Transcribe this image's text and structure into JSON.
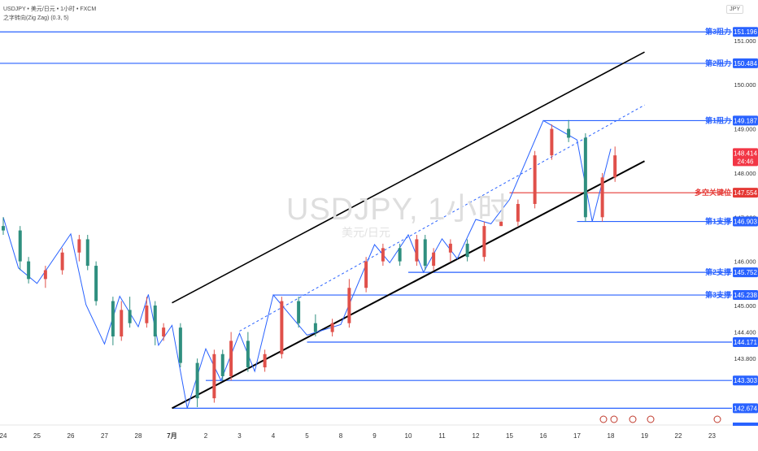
{
  "header": {
    "symbol_line": "USDJPY • 美元/日元 • 1小时 • FXCM",
    "indicator_line": "之字转向(Zig Zag) (0.3, 5)",
    "currency": "JPY"
  },
  "watermark": {
    "symbol": "USDJPY, 1小时",
    "subtitle": "美元/日元"
  },
  "colors": {
    "up": "#e0504a",
    "down": "#2f8f7f",
    "level": "#2962ff",
    "key_level": "#e53935",
    "channel": "#000000",
    "zigzag": "#2962ff",
    "price_badge": "#f23645"
  },
  "chart_data": {
    "type": "candlestick",
    "title": "",
    "xlabel": "",
    "ylabel": "",
    "x_ticks": [
      "24",
      "25",
      "26",
      "27",
      "28",
      "7月",
      "2",
      "3",
      "4",
      "5",
      "8",
      "9",
      "10",
      "11",
      "12",
      "15",
      "16",
      "17",
      "18",
      "19",
      "22",
      "23"
    ],
    "y_ticks": [
      "151.000",
      "150.000",
      "149.000",
      "148.000",
      "147.000",
      "146.000",
      "145.000",
      "144.400",
      "143.800"
    ],
    "ylim": [
      142.35,
      151.55
    ],
    "grid": false,
    "levels": [
      {
        "label": "第3阻力",
        "value": "151.196",
        "price": 151.196,
        "kind": "resistance",
        "from": "2024-06-24"
      },
      {
        "label": "第2阻力",
        "value": "150.484",
        "price": 150.484,
        "kind": "resistance",
        "from": "2024-06-24"
      },
      {
        "label": "第1阻力",
        "value": "149.187",
        "price": 149.187,
        "kind": "resistance",
        "from": "2024-07-16"
      },
      {
        "label": "多空关键位",
        "value": "147.554",
        "price": 147.554,
        "kind": "pivot",
        "from": "2024-07-15"
      },
      {
        "label": "第1支撑",
        "value": "146.903",
        "price": 146.903,
        "kind": "support",
        "from": "2024-07-17"
      },
      {
        "label": "第2支撑",
        "value": "145.752",
        "price": 145.752,
        "kind": "support",
        "from": "2024-07-10"
      },
      {
        "label": "第3支撑",
        "value": "145.238",
        "price": 145.238,
        "kind": "support",
        "from": "2024-07-04"
      },
      {
        "label": "",
        "value": "144.171",
        "price": 144.171,
        "kind": "support",
        "from": "2024-07-05"
      },
      {
        "label": "",
        "value": "143.303",
        "price": 143.303,
        "kind": "support",
        "from": "2024-07-02"
      },
      {
        "label": "",
        "value": "142.674",
        "price": 142.674,
        "kind": "support",
        "from": "2024-07-01"
      }
    ],
    "last_price": {
      "value": "148.414",
      "price": 148.414,
      "countdown": "24:46"
    },
    "channel": {
      "upper": [
        [
          "2024-07-01",
          145.06
        ],
        [
          "2024-07-19",
          150.74
        ]
      ],
      "lower": [
        [
          "2024-07-01",
          142.674
        ],
        [
          "2024-07-19",
          148.27
        ]
      ],
      "mid": [
        [
          "2024-07-03",
          144.42
        ],
        [
          "2024-07-19",
          149.54
        ]
      ]
    },
    "zigzag": [
      [
        "2024-06-24",
        147.0
      ],
      [
        "2024-06-24",
        145.85
      ],
      [
        "2024-06-25",
        145.5
      ],
      [
        "2024-06-26",
        146.62
      ],
      [
        "2024-06-26",
        145.02
      ],
      [
        "2024-06-27",
        144.13
      ],
      [
        "2024-06-27",
        145.21
      ],
      [
        "2024-06-28",
        144.52
      ],
      [
        "2024-06-28",
        145.25
      ],
      [
        "2024-06-28",
        144.1
      ],
      [
        "2024-07-01",
        144.55
      ],
      [
        "2024-07-01",
        142.674
      ],
      [
        "2024-07-02",
        144.02
      ],
      [
        "2024-07-02",
        143.303
      ],
      [
        "2024-07-03",
        144.37
      ],
      [
        "2024-07-03",
        143.51
      ],
      [
        "2024-07-04",
        145.238
      ],
      [
        "2024-07-05",
        144.33
      ],
      [
        "2024-07-08",
        144.57
      ],
      [
        "2024-07-09",
        146.38
      ],
      [
        "2024-07-09",
        145.97
      ],
      [
        "2024-07-10",
        146.6
      ],
      [
        "2024-07-10",
        145.752
      ],
      [
        "2024-07-11",
        146.51
      ],
      [
        "2024-07-11",
        146.06
      ],
      [
        "2024-07-12",
        146.95
      ],
      [
        "2024-07-12",
        146.85
      ],
      [
        "2024-07-15",
        147.4
      ],
      [
        "2024-07-16",
        149.187
      ],
      [
        "2024-07-17",
        148.75
      ],
      [
        "2024-07-17",
        146.903
      ],
      [
        "2024-07-18",
        148.55
      ]
    ],
    "candles": [
      {
        "t": "2024-06-24T00:00",
        "o": 146.8,
        "h": 147.0,
        "l": 146.6,
        "c": 146.7
      },
      {
        "t": "2024-06-24T12:00",
        "o": 146.7,
        "h": 146.8,
        "l": 145.8,
        "c": 146.0
      },
      {
        "t": "2024-06-24T18:00",
        "o": 146.0,
        "h": 146.1,
        "l": 145.5,
        "c": 145.6
      },
      {
        "t": "2024-06-25T06:00",
        "o": 145.6,
        "h": 145.9,
        "l": 145.4,
        "c": 145.8
      },
      {
        "t": "2024-06-25T18:00",
        "o": 145.8,
        "h": 146.3,
        "l": 145.7,
        "c": 146.2
      },
      {
        "t": "2024-06-26T06:00",
        "o": 146.2,
        "h": 146.6,
        "l": 146.0,
        "c": 146.5
      },
      {
        "t": "2024-06-26T12:00",
        "o": 146.5,
        "h": 146.6,
        "l": 145.8,
        "c": 145.9
      },
      {
        "t": "2024-06-26T18:00",
        "o": 145.9,
        "h": 146.0,
        "l": 145.0,
        "c": 145.1
      },
      {
        "t": "2024-06-27T06:00",
        "o": 145.1,
        "h": 145.2,
        "l": 144.1,
        "c": 144.3
      },
      {
        "t": "2024-06-27T12:00",
        "o": 144.3,
        "h": 145.1,
        "l": 144.2,
        "c": 144.9
      },
      {
        "t": "2024-06-27T18:00",
        "o": 144.9,
        "h": 145.2,
        "l": 144.5,
        "c": 144.6
      },
      {
        "t": "2024-06-28T06:00",
        "o": 144.6,
        "h": 145.2,
        "l": 144.5,
        "c": 145.0
      },
      {
        "t": "2024-06-28T12:00",
        "o": 145.0,
        "h": 145.1,
        "l": 144.1,
        "c": 144.3
      },
      {
        "t": "2024-06-28T18:00",
        "o": 144.3,
        "h": 144.6,
        "l": 144.2,
        "c": 144.5
      },
      {
        "t": "2024-07-01T06:00",
        "o": 144.5,
        "h": 144.6,
        "l": 143.6,
        "c": 143.7
      },
      {
        "t": "2024-07-01T18:00",
        "o": 143.7,
        "h": 143.8,
        "l": 142.7,
        "c": 142.9
      },
      {
        "t": "2024-07-02T06:00",
        "o": 142.9,
        "h": 144.0,
        "l": 142.8,
        "c": 143.9
      },
      {
        "t": "2024-07-02T12:00",
        "o": 143.9,
        "h": 144.0,
        "l": 143.3,
        "c": 143.4
      },
      {
        "t": "2024-07-02T18:00",
        "o": 143.4,
        "h": 144.4,
        "l": 143.3,
        "c": 144.2
      },
      {
        "t": "2024-07-03T06:00",
        "o": 144.2,
        "h": 144.4,
        "l": 143.5,
        "c": 143.6
      },
      {
        "t": "2024-07-03T18:00",
        "o": 143.6,
        "h": 144.0,
        "l": 143.5,
        "c": 143.9
      },
      {
        "t": "2024-07-04T06:00",
        "o": 143.9,
        "h": 145.2,
        "l": 143.8,
        "c": 145.1
      },
      {
        "t": "2024-07-04T18:00",
        "o": 145.1,
        "h": 145.2,
        "l": 144.5,
        "c": 144.6
      },
      {
        "t": "2024-07-05T06:00",
        "o": 144.6,
        "h": 144.8,
        "l": 144.3,
        "c": 144.4
      },
      {
        "t": "2024-07-05T18:00",
        "o": 144.4,
        "h": 144.7,
        "l": 144.3,
        "c": 144.6
      },
      {
        "t": "2024-07-08T06:00",
        "o": 144.6,
        "h": 145.6,
        "l": 144.5,
        "c": 145.4
      },
      {
        "t": "2024-07-08T18:00",
        "o": 145.4,
        "h": 146.1,
        "l": 145.3,
        "c": 146.0
      },
      {
        "t": "2024-07-09T06:00",
        "o": 146.0,
        "h": 146.4,
        "l": 145.9,
        "c": 146.3
      },
      {
        "t": "2024-07-09T18:00",
        "o": 146.3,
        "h": 146.4,
        "l": 145.9,
        "c": 146.0
      },
      {
        "t": "2024-07-10T06:00",
        "o": 146.0,
        "h": 146.6,
        "l": 145.9,
        "c": 146.5
      },
      {
        "t": "2024-07-10T12:00",
        "o": 146.5,
        "h": 146.6,
        "l": 145.8,
        "c": 145.9
      },
      {
        "t": "2024-07-10T18:00",
        "o": 145.9,
        "h": 146.3,
        "l": 145.8,
        "c": 146.2
      },
      {
        "t": "2024-07-11T06:00",
        "o": 146.2,
        "h": 146.5,
        "l": 146.0,
        "c": 146.4
      },
      {
        "t": "2024-07-11T18:00",
        "o": 146.4,
        "h": 146.5,
        "l": 146.0,
        "c": 146.1
      },
      {
        "t": "2024-07-12T06:00",
        "o": 146.1,
        "h": 146.9,
        "l": 146.0,
        "c": 146.8
      },
      {
        "t": "2024-07-12T18:00",
        "o": 146.8,
        "h": 146.95,
        "l": 146.8,
        "c": 146.9
      },
      {
        "t": "2024-07-15T06:00",
        "o": 146.9,
        "h": 147.4,
        "l": 146.8,
        "c": 147.3
      },
      {
        "t": "2024-07-15T18:00",
        "o": 147.3,
        "h": 148.5,
        "l": 147.2,
        "c": 148.4
      },
      {
        "t": "2024-07-16T06:00",
        "o": 148.4,
        "h": 149.1,
        "l": 148.3,
        "c": 149.0
      },
      {
        "t": "2024-07-16T18:00",
        "o": 149.0,
        "h": 149.2,
        "l": 148.7,
        "c": 148.8
      },
      {
        "t": "2024-07-17T06:00",
        "o": 148.8,
        "h": 148.9,
        "l": 146.9,
        "c": 147.0
      },
      {
        "t": "2024-07-17T18:00",
        "o": 147.0,
        "h": 148.0,
        "l": 146.9,
        "c": 147.9
      },
      {
        "t": "2024-07-18T03:00",
        "o": 147.9,
        "h": 148.6,
        "l": 147.8,
        "c": 148.4
      }
    ]
  }
}
